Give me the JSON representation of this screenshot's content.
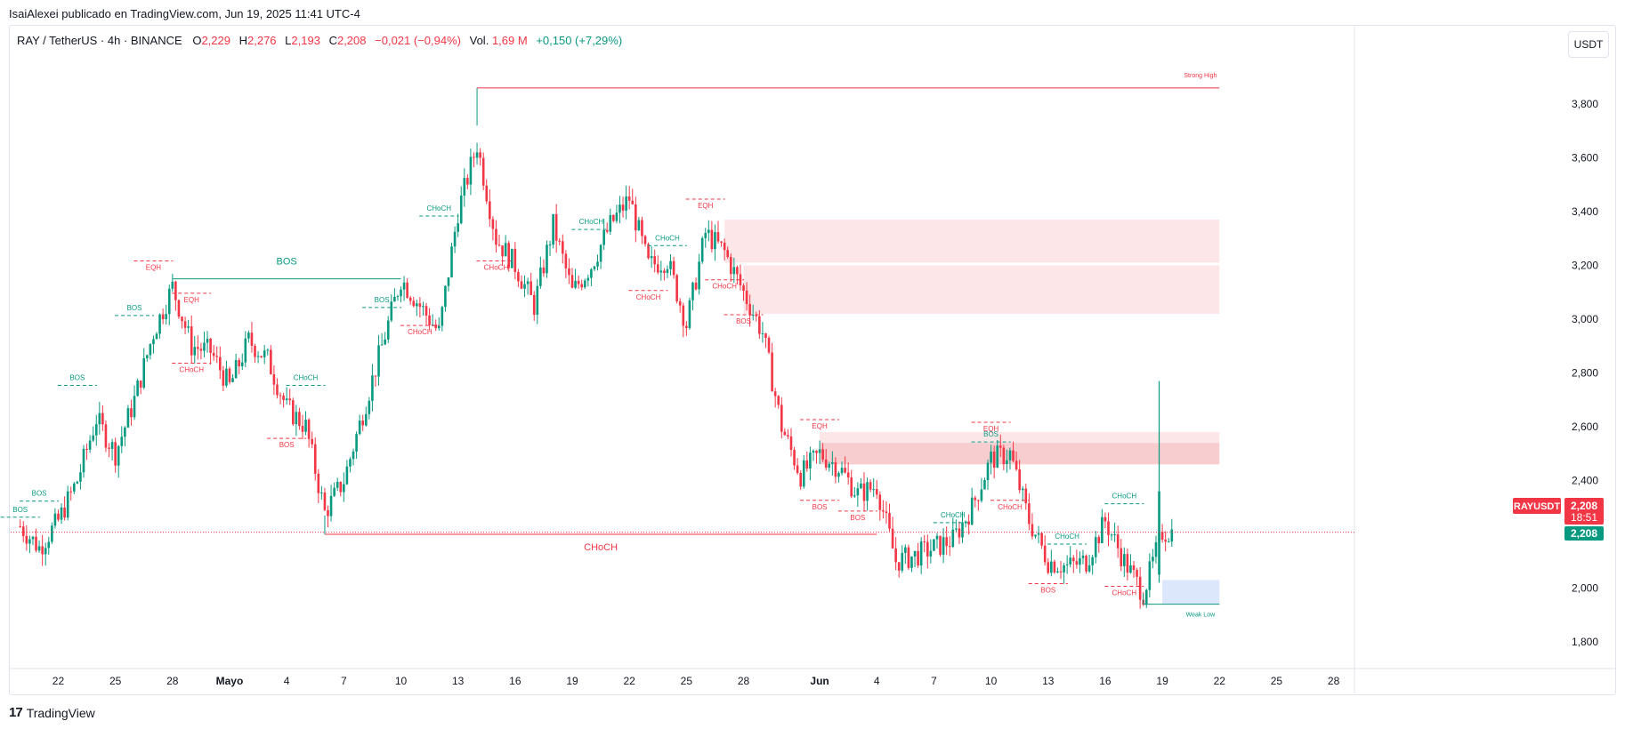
{
  "header": {
    "published_by": "IsaiAlexei publicado en TradingView.com, Jun 19, 2025 11:41 UTC-4"
  },
  "legend": {
    "symbol": "RAY / TetherUS · 4h · BINANCE",
    "open_label": "O",
    "open": "2,229",
    "high_label": "H",
    "high": "2,276",
    "low_label": "L",
    "low": "2,193",
    "close_label": "C",
    "close": "2,208",
    "change": "−0,021 (−0,94%)",
    "vol_label": "Vol.",
    "vol": "1,69 M",
    "vol_change": "+0,150 (+7,29%)"
  },
  "currency_button": "USDT",
  "footer": {
    "logo_mark": "17",
    "logo_text": "TradingView"
  },
  "colors": {
    "up": "#089981",
    "down": "#f23645",
    "zone_red": "#fde2e4",
    "zone_red_dark": "#f7c4c8",
    "zone_blue": "#d7e3fc",
    "axis_text": "#131722",
    "price_line": "#f23645"
  },
  "chart_data": {
    "type": "candlestick",
    "symbol": "RAYUSDT",
    "timeframe": "4h",
    "x_tick_labels": [
      "22",
      "25",
      "28",
      "Mayo",
      "4",
      "7",
      "10",
      "13",
      "16",
      "19",
      "22",
      "25",
      "28",
      "Jun",
      "4",
      "7",
      "10",
      "13",
      "16",
      "19",
      "22",
      "25",
      "28"
    ],
    "y_ticks": [
      "3,800",
      "3,600",
      "3,400",
      "3,200",
      "3,000",
      "2,800",
      "2,600",
      "2,400",
      "2,200",
      "2,000",
      "1,800"
    ],
    "y_tick_values": [
      3.8,
      3.6,
      3.4,
      3.2,
      3.0,
      2.8,
      2.6,
      2.4,
      2.2,
      2.0,
      1.8
    ],
    "y_range": [
      1.6,
      4.02
    ],
    "last_price_tag": {
      "symbol": "RAYUSDT",
      "price": "2,208",
      "countdown": "18:51"
    },
    "green_price_tag": "2,208",
    "price_path": [
      {
        "x": "2025-04-20",
        "close": 2.23
      },
      {
        "x": "2025-04-21",
        "close": 2.15
      },
      {
        "x": "2025-04-22",
        "close": 2.25
      },
      {
        "x": "2025-04-23",
        "close": 2.4
      },
      {
        "x": "2025-04-24",
        "close": 2.63
      },
      {
        "x": "2025-04-25",
        "close": 2.5
      },
      {
        "x": "2025-04-26",
        "close": 2.7
      },
      {
        "x": "2025-04-27",
        "close": 2.95
      },
      {
        "x": "2025-04-28",
        "close": 3.12
      },
      {
        "x": "2025-04-29",
        "close": 2.9
      },
      {
        "x": "2025-04-30",
        "close": 2.88
      },
      {
        "x": "2025-05-01",
        "close": 2.75
      },
      {
        "x": "2025-05-02",
        "close": 2.92
      },
      {
        "x": "2025-05-03",
        "close": 2.85
      },
      {
        "x": "2025-05-04",
        "close": 2.67
      },
      {
        "x": "2025-05-05",
        "close": 2.6
      },
      {
        "x": "2025-05-06",
        "close": 2.28
      },
      {
        "x": "2025-05-07",
        "close": 2.4
      },
      {
        "x": "2025-05-08",
        "close": 2.65
      },
      {
        "x": "2025-05-09",
        "close": 2.9
      },
      {
        "x": "2025-05-10",
        "close": 3.15
      },
      {
        "x": "2025-05-11",
        "close": 3.05
      },
      {
        "x": "2025-05-12",
        "close": 2.95
      },
      {
        "x": "2025-05-13",
        "close": 3.4
      },
      {
        "x": "2025-05-14",
        "close": 3.65
      },
      {
        "x": "2025-05-15",
        "close": 3.3
      },
      {
        "x": "2025-05-16",
        "close": 3.2
      },
      {
        "x": "2025-05-17",
        "close": 3.05
      },
      {
        "x": "2025-05-18",
        "close": 3.35
      },
      {
        "x": "2025-05-19",
        "close": 3.1
      },
      {
        "x": "2025-05-20",
        "close": 3.2
      },
      {
        "x": "2025-05-21",
        "close": 3.35
      },
      {
        "x": "2025-05-22",
        "close": 3.45
      },
      {
        "x": "2025-05-23",
        "close": 3.2
      },
      {
        "x": "2025-05-24",
        "close": 3.22
      },
      {
        "x": "2025-05-25",
        "close": 2.98
      },
      {
        "x": "2025-05-26",
        "close": 3.32
      },
      {
        "x": "2025-05-27",
        "close": 3.25
      },
      {
        "x": "2025-05-28",
        "close": 3.1
      },
      {
        "x": "2025-05-29",
        "close": 2.95
      },
      {
        "x": "2025-05-30",
        "close": 2.6
      },
      {
        "x": "2025-05-31",
        "close": 2.42
      },
      {
        "x": "2025-06-01",
        "close": 2.5
      },
      {
        "x": "2025-06-02",
        "close": 2.45
      },
      {
        "x": "2025-06-03",
        "close": 2.35
      },
      {
        "x": "2025-06-04",
        "close": 2.38
      },
      {
        "x": "2025-06-05",
        "close": 2.1
      },
      {
        "x": "2025-06-06",
        "close": 2.12
      },
      {
        "x": "2025-06-07",
        "close": 2.15
      },
      {
        "x": "2025-06-08",
        "close": 2.18
      },
      {
        "x": "2025-06-09",
        "close": 2.3
      },
      {
        "x": "2025-06-10",
        "close": 2.48
      },
      {
        "x": "2025-06-11",
        "close": 2.5
      },
      {
        "x": "2025-06-12",
        "close": 2.25
      },
      {
        "x": "2025-06-13",
        "close": 2.1
      },
      {
        "x": "2025-06-14",
        "close": 2.08
      },
      {
        "x": "2025-06-15",
        "close": 2.1
      },
      {
        "x": "2025-06-16",
        "close": 2.25
      },
      {
        "x": "2025-06-17",
        "close": 2.1
      },
      {
        "x": "2025-06-18",
        "close": 1.98
      },
      {
        "x": "2025-06-19",
        "close": 2.208
      }
    ],
    "zones": [
      {
        "type": "supply",
        "from": "2025-05-27",
        "to": "2025-06-22",
        "top": 3.37,
        "bottom": 3.21
      },
      {
        "type": "supply",
        "from": "2025-05-28",
        "to": "2025-06-22",
        "top": 3.2,
        "bottom": 3.02
      },
      {
        "type": "supply",
        "from": "2025-06-01",
        "to": "2025-06-22",
        "top": 2.58,
        "bottom": 2.54
      },
      {
        "type": "supply",
        "from": "2025-06-01",
        "to": "2025-06-22",
        "top": 2.54,
        "bottom": 2.46
      },
      {
        "type": "demand",
        "from": "2025-06-19",
        "to": "2025-06-22",
        "top": 2.03,
        "bottom": 1.94
      }
    ],
    "structure_lines": [
      {
        "label": "BOS",
        "color": "up",
        "price": 3.15,
        "from": "2025-04-28",
        "to": "2025-05-10",
        "style": "solid"
      },
      {
        "label": "CHoCH",
        "color": "down",
        "price": 2.2,
        "from": "2025-05-06",
        "to": "2025-06-04",
        "style": "solid"
      },
      {
        "label": "Strong High",
        "color": "down",
        "price": 3.86,
        "from": "2025-05-14",
        "to": "2025-06-22",
        "style": "solid"
      },
      {
        "label": "Weak Low",
        "color": "up",
        "price": 1.94,
        "from": "2025-06-18",
        "to": "2025-06-22",
        "style": "solid"
      }
    ],
    "small_labels": [
      {
        "text": "BOS",
        "color": "up",
        "x": "2025-04-20",
        "price": 2.29
      },
      {
        "text": "BOS",
        "color": "up",
        "x": "2025-04-21",
        "price": 2.35
      },
      {
        "text": "BOS",
        "color": "up",
        "x": "2025-04-23",
        "price": 2.78
      },
      {
        "text": "BOS",
        "color": "up",
        "x": "2025-04-26",
        "price": 3.04
      },
      {
        "text": "EQH",
        "color": "down",
        "x": "2025-04-27",
        "price": 3.19
      },
      {
        "text": "EQH",
        "color": "down",
        "x": "2025-04-29",
        "price": 3.07
      },
      {
        "text": "CHoCH",
        "color": "down",
        "x": "2025-04-29",
        "price": 2.81
      },
      {
        "text": "CHoCH",
        "color": "up",
        "x": "2025-05-05",
        "price": 2.78
      },
      {
        "text": "BOS",
        "color": "down",
        "x": "2025-05-04",
        "price": 2.53
      },
      {
        "text": "BOS",
        "color": "up",
        "x": "2025-05-09",
        "price": 3.07
      },
      {
        "text": "CHoCH",
        "color": "down",
        "x": "2025-05-11",
        "price": 2.95
      },
      {
        "text": "CHoCH",
        "color": "up",
        "x": "2025-05-12",
        "price": 3.41
      },
      {
        "text": "CHoCH",
        "color": "down",
        "x": "2025-05-15",
        "price": 3.19
      },
      {
        "text": "CHoCH",
        "color": "up",
        "x": "2025-05-20",
        "price": 3.36
      },
      {
        "text": "CHoCH",
        "color": "up",
        "x": "2025-05-24",
        "price": 3.3
      },
      {
        "text": "CHoCH",
        "color": "down",
        "x": "2025-05-23",
        "price": 3.08
      },
      {
        "text": "EQH",
        "color": "down",
        "x": "2025-05-26",
        "price": 3.42
      },
      {
        "text": "CHoCH",
        "color": "down",
        "x": "2025-05-27",
        "price": 3.12
      },
      {
        "text": "BOS",
        "color": "down",
        "x": "2025-05-28",
        "price": 2.99
      },
      {
        "text": "EQH",
        "color": "down",
        "x": "2025-06-01",
        "price": 2.6
      },
      {
        "text": "BOS",
        "color": "down",
        "x": "2025-06-01",
        "price": 2.3
      },
      {
        "text": "BOS",
        "color": "down",
        "x": "2025-06-03",
        "price": 2.26
      },
      {
        "text": "CHoCH",
        "color": "up",
        "x": "2025-06-08",
        "price": 2.27
      },
      {
        "text": "EQH",
        "color": "down",
        "x": "2025-06-10",
        "price": 2.59
      },
      {
        "text": "BOS",
        "color": "up",
        "x": "2025-06-10",
        "price": 2.57
      },
      {
        "text": "CHoCH",
        "color": "down",
        "x": "2025-06-11",
        "price": 2.3
      },
      {
        "text": "CHoCH",
        "color": "up",
        "x": "2025-06-14",
        "price": 2.19
      },
      {
        "text": "BOS",
        "color": "down",
        "x": "2025-06-13",
        "price": 1.99
      },
      {
        "text": "CHoCH",
        "color": "up",
        "x": "2025-06-17",
        "price": 2.34
      },
      {
        "text": "CHoCH",
        "color": "down",
        "x": "2025-06-17",
        "price": 1.98
      }
    ],
    "legend_text": []
  }
}
